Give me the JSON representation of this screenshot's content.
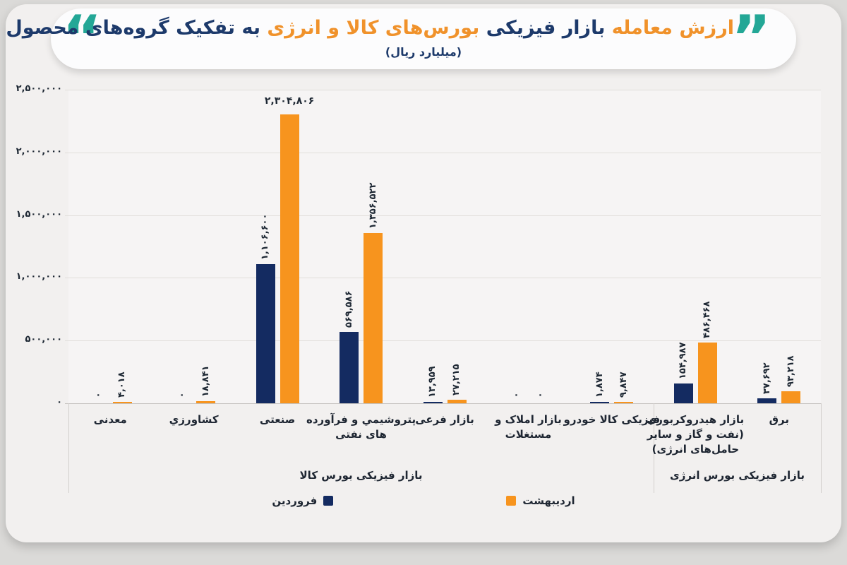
{
  "colors": {
    "navy_bar": "#142b61",
    "orange_bar": "#f7941e",
    "title_navy": "#1d3a6b",
    "title_orange": "#f0922b",
    "teal_quote": "#23a796",
    "card_bg": "#f2f0ef",
    "text_dark": "#1d2733"
  },
  "title": {
    "open_quote": "“",
    "close_quote": "”",
    "segments": [
      {
        "text": "ارزش معامله",
        "tone": "orange"
      },
      {
        "text": "بازار فیزیکی",
        "tone": "navy"
      },
      {
        "text": "بورس‌های کالا و انرژی",
        "tone": "orange"
      },
      {
        "text": "به تفکیک گروه‌های محصول",
        "tone": "navy"
      }
    ],
    "subtitle": "(میلیارد ریال)"
  },
  "chart_data": {
    "type": "bar",
    "unit": "میلیارد ریال",
    "ylim": [
      0,
      2500000
    ],
    "grid": true,
    "y_ticks": [
      {
        "value": 2500000,
        "label": "۲,۵۰۰,۰۰۰"
      },
      {
        "value": 2000000,
        "label": "۲,۰۰۰,۰۰۰"
      },
      {
        "value": 1500000,
        "label": "۱,۵۰۰,۰۰۰"
      },
      {
        "value": 1000000,
        "label": "۱,۰۰۰,۰۰۰"
      },
      {
        "value": 500000,
        "label": "۵۰۰,۰۰۰"
      },
      {
        "value": 0,
        "label": "۰"
      }
    ],
    "categories": [
      {
        "label": "معدنی",
        "lines": [
          "معدنی"
        ]
      },
      {
        "label": "کشاورزي",
        "lines": [
          "کشاورزي"
        ]
      },
      {
        "label": "صنعتی",
        "lines": [
          "صنعتی"
        ]
      },
      {
        "label": "پتروشیمي و فرآورده های نفتی",
        "lines": [
          "پتروشیمي و فرآورده",
          "های نفتی"
        ]
      },
      {
        "label": "بازار فرعی",
        "lines": [
          "بازار فرعی"
        ]
      },
      {
        "label": "بازار املاک و مستغلات",
        "lines": [
          "بازار املاک و",
          "مستغلات"
        ]
      },
      {
        "label": "فیزیکی کالا خودرو",
        "lines": [
          "فیزیکی کالا خودرو"
        ]
      },
      {
        "label": "بازار هیدروکربوری (نفت و گاز و سایر حامل‌های انرژی)",
        "lines": [
          "بازار هیدروکربوری",
          "(نفت و گاز و سایر",
          "حامل‌های انرژی)"
        ]
      },
      {
        "label": "برق",
        "lines": [
          "برق"
        ]
      }
    ],
    "series": [
      {
        "name": "فروردین",
        "color": "#142b61",
        "values": [
          0,
          0,
          1106600,
          569586,
          13959,
          0,
          1874,
          154987,
          37692
        ],
        "labels": [
          "۰",
          "۰",
          "۱,۱۰۶,۶۰۰",
          "۵۶۹,۵۸۶",
          "۱۳,۹۵۹",
          "۰",
          "۱,۸۷۴",
          "۱۵۴,۹۸۷",
          "۳۷,۶۹۲"
        ]
      },
      {
        "name": "اردیبهشت",
        "color": "#f7941e",
        "values": [
          4018,
          18841,
          2304806,
          1356522,
          27215,
          0,
          9847,
          486468,
          93218
        ],
        "labels": [
          "۴,۰۱۸",
          "۱۸,۸۴۱",
          "۲,۳۰۴,۸۰۶",
          "۱,۳۵۶,۵۲۲",
          "۲۷,۲۱۵",
          "۰",
          "۹,۸۴۷",
          "۴۸۶,۴۶۸",
          "۹۳,۲۱۸"
        ]
      }
    ],
    "horizontal_labels": [
      [
        1,
        2
      ]
    ],
    "groups": [
      {
        "label": "بازار فیزیکی بورس کالا",
        "span": [
          0,
          6
        ]
      },
      {
        "label": "بازار فیزیکی بورس انرژی",
        "span": [
          7,
          8
        ]
      }
    ],
    "legend": [
      {
        "label": "فروردین",
        "color": "#142b61",
        "swatch": "after"
      },
      {
        "label": "اردیبهشت",
        "color": "#f7941e",
        "swatch": "before"
      }
    ],
    "legend_position": "bottom"
  }
}
